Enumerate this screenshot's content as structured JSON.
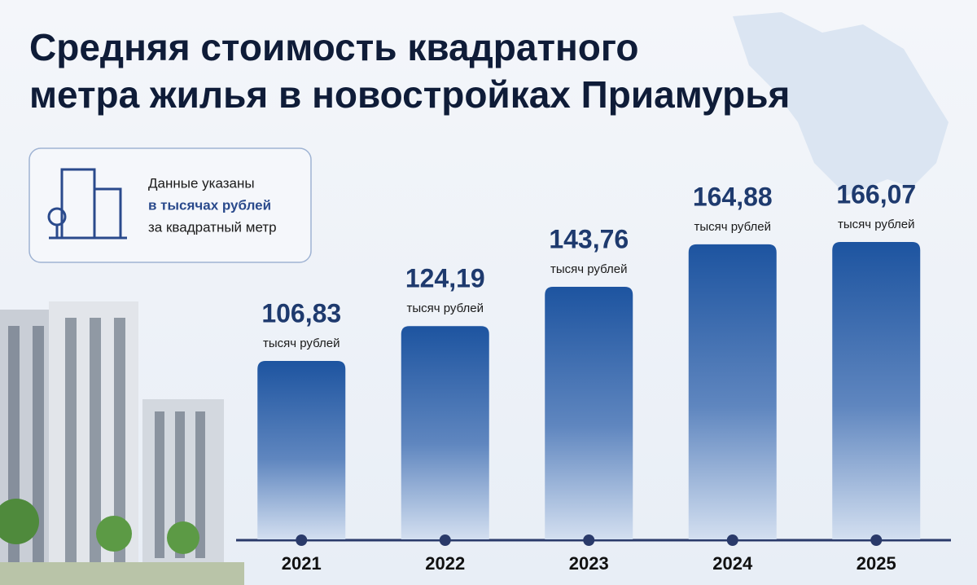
{
  "chart_data": {
    "type": "bar",
    "title": [
      "Средняя стоимость квадратного",
      "метра жилья в новостройках Приамурья"
    ],
    "note": [
      "Данные указаны",
      "в тысячах рублей",
      "за квадратный метр"
    ],
    "value_unit": "тысяч рублей",
    "categories": [
      "2021",
      "2022",
      "2023",
      "2024",
      "2025"
    ],
    "values": [
      106.83,
      124.19,
      143.76,
      164.88,
      166.07
    ],
    "value_labels": [
      "106,83",
      "124,19",
      "143,76",
      "164,88",
      "166,07"
    ],
    "ylim": [
      18,
      190
    ],
    "color": "#1d54a0"
  }
}
